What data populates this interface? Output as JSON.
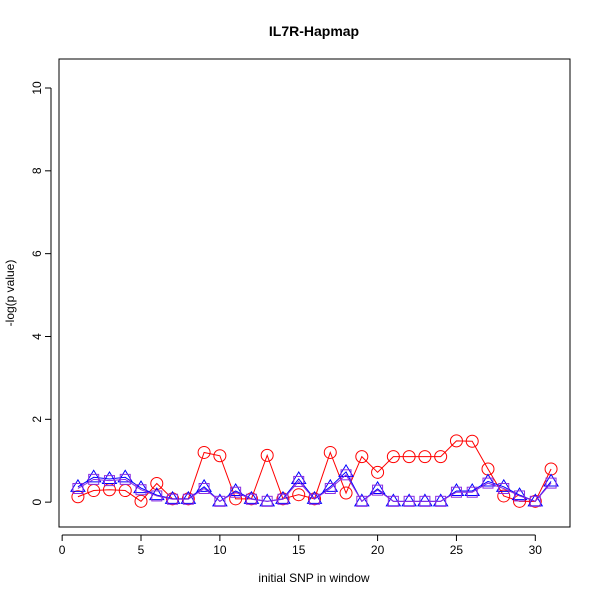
{
  "chart_data": {
    "type": "line",
    "title": "IL7R-Hapmap",
    "xlabel": "initial SNP in window",
    "ylabel": "-log(p value)",
    "xlim": [
      -0.2,
      32.2
    ],
    "ylim": [
      -0.6,
      10.7
    ],
    "xticks": [
      0,
      5,
      10,
      15,
      20,
      25,
      30
    ],
    "yticks": [
      0,
      2,
      4,
      6,
      8,
      10
    ],
    "grid": false,
    "x": [
      1,
      2,
      3,
      4,
      5,
      6,
      7,
      8,
      9,
      10,
      11,
      12,
      13,
      14,
      15,
      16,
      17,
      18,
      19,
      20,
      21,
      22,
      23,
      24,
      25,
      26,
      27,
      28,
      29,
      30,
      31
    ],
    "series": [
      {
        "color": "#ff0000",
        "marker": "circle",
        "values": [
          0.13,
          0.28,
          0.3,
          0.28,
          0.02,
          0.45,
          0.08,
          0.08,
          1.2,
          1.12,
          0.08,
          0.08,
          1.13,
          0.08,
          0.18,
          0.08,
          1.2,
          0.22,
          1.1,
          0.72,
          1.1,
          1.1,
          1.1,
          1.1,
          1.48,
          1.47,
          0.8,
          0.15,
          0.02,
          0.02,
          0.8
        ]
      },
      {
        "color": "#0000ff",
        "marker": "triangle",
        "values": [
          0.37,
          0.6,
          0.56,
          0.6,
          0.34,
          0.17,
          0.08,
          0.08,
          0.37,
          0.02,
          0.27,
          0.08,
          0.02,
          0.08,
          0.56,
          0.08,
          0.37,
          0.73,
          0.02,
          0.32,
          0.02,
          0.02,
          0.02,
          0.02,
          0.27,
          0.27,
          0.5,
          0.37,
          0.17,
          0.02,
          0.5
        ]
      },
      {
        "color": "#8a2be2",
        "marker": "square",
        "values": [
          0.33,
          0.55,
          0.52,
          0.55,
          0.3,
          0.15,
          0.07,
          0.07,
          0.33,
          0.02,
          0.24,
          0.07,
          0.02,
          0.07,
          0.5,
          0.07,
          0.33,
          0.66,
          0.02,
          0.29,
          0.02,
          0.02,
          0.02,
          0.02,
          0.24,
          0.24,
          0.46,
          0.33,
          0.15,
          0.02,
          0.46
        ]
      }
    ]
  }
}
